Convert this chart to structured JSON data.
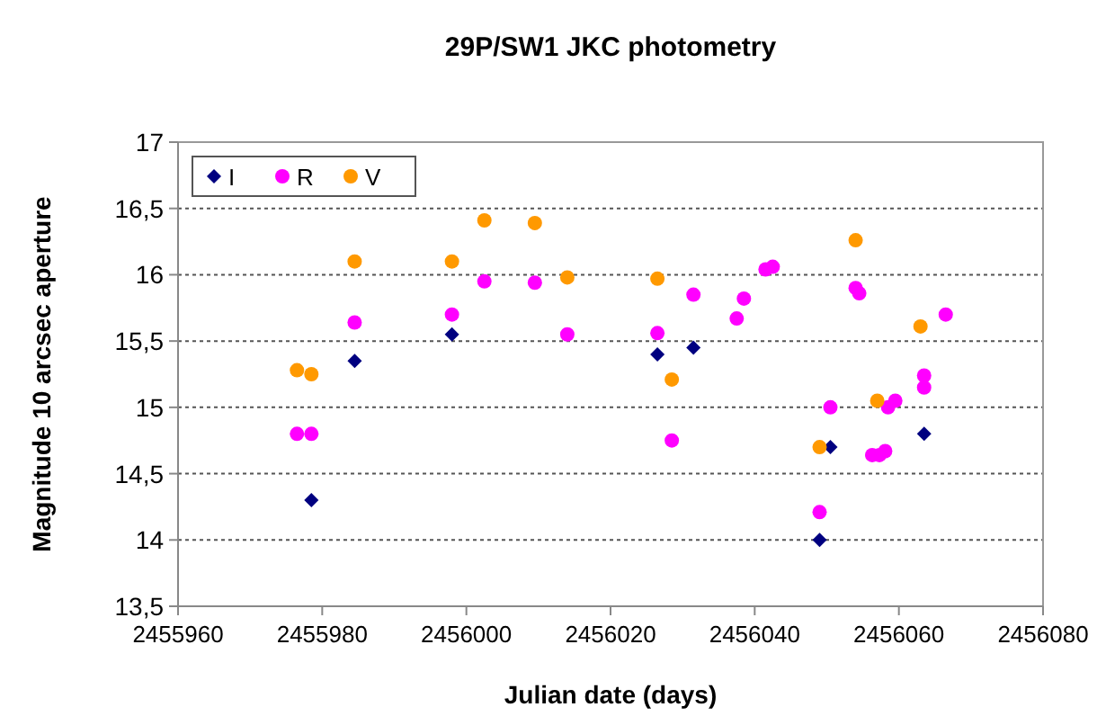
{
  "chart_data": {
    "type": "scatter",
    "title": "29P/SW1 JKC photometry",
    "xlabel": "Julian date (days)",
    "ylabel": "Magnitude 10 arcsec aperture",
    "xlim": [
      2455960,
      2456080
    ],
    "xticks": [
      2455960,
      2455980,
      2456000,
      2456020,
      2456040,
      2456060,
      2456080
    ],
    "ylim": [
      13.5,
      17
    ],
    "yticks": [
      {
        "value": 13.5,
        "label": "13,5"
      },
      {
        "value": 14,
        "label": "14"
      },
      {
        "value": 14.5,
        "label": "14,5"
      },
      {
        "value": 15,
        "label": "15"
      },
      {
        "value": 15.5,
        "label": "15,5"
      },
      {
        "value": 16,
        "label": "16"
      },
      {
        "value": 16.5,
        "label": "16,5"
      },
      {
        "value": 17,
        "label": "17"
      }
    ],
    "grid": "y",
    "legend": "top left",
    "series": [
      {
        "name": "I",
        "color": "#000080",
        "marker": "diamond",
        "x": [
          2455978.5,
          2455984.5,
          2455998,
          2456026.5,
          2456031.5,
          2456049,
          2456050.5,
          2456063.5
        ],
        "values": [
          14.3,
          15.35,
          15.55,
          15.4,
          15.45,
          14.0,
          14.7,
          14.8
        ]
      },
      {
        "name": "R",
        "color": "#ff00ff",
        "marker": "circle",
        "x": [
          2455976.5,
          2455978.5,
          2455984.5,
          2455998,
          2456002.5,
          2456009.5,
          2456014,
          2456026.5,
          2456028.5,
          2456031.5,
          2456037.5,
          2456038.5,
          2456041.5,
          2456042.5,
          2456049,
          2456050.5,
          2456054,
          2456054.5,
          2456056.3,
          2456057.3,
          2456058.1,
          2456058.5,
          2456059.5,
          2456063.5,
          2456063.5,
          2456066.5
        ],
        "values": [
          14.8,
          14.8,
          15.64,
          15.7,
          15.95,
          15.94,
          15.55,
          15.56,
          14.75,
          15.85,
          15.67,
          15.82,
          16.04,
          16.06,
          14.21,
          15.0,
          15.9,
          15.86,
          14.64,
          14.64,
          14.67,
          15.0,
          15.05,
          15.24,
          15.15,
          15.7
        ]
      },
      {
        "name": "V",
        "color": "#ff9900",
        "marker": "circle",
        "x": [
          2455976.5,
          2455978.5,
          2455984.5,
          2455998,
          2456002.5,
          2456009.5,
          2456014,
          2456026.5,
          2456028.5,
          2456049,
          2456054,
          2456057,
          2456063
        ],
        "values": [
          15.28,
          15.25,
          16.1,
          16.1,
          16.41,
          16.39,
          15.98,
          15.97,
          15.21,
          14.7,
          16.26,
          15.05,
          15.61
        ]
      }
    ]
  }
}
